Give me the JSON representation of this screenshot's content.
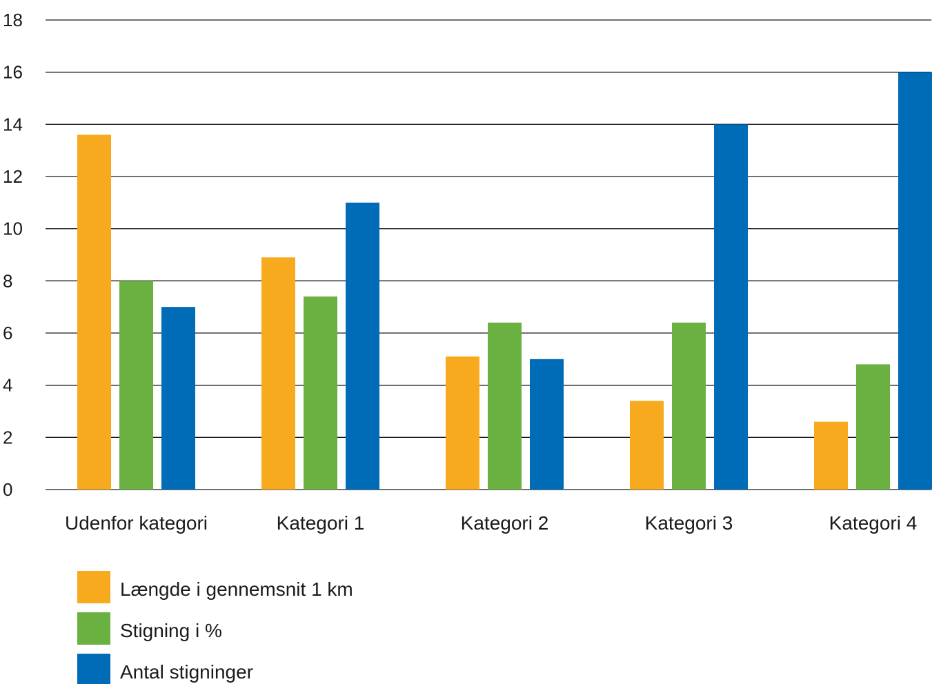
{
  "chart_data": {
    "type": "bar",
    "title": "",
    "xlabel": "",
    "ylabel": "",
    "ylim": [
      0,
      18
    ],
    "yticks": [
      0,
      2,
      4,
      6,
      8,
      10,
      12,
      14,
      16,
      18
    ],
    "grid": true,
    "legend_position": "bottom-left",
    "categories": [
      "Udenfor kategori",
      "Kategori 1",
      "Kategori 2",
      "Kategori 3",
      "Kategori 4"
    ],
    "series": [
      {
        "name": "Længde i gennemsnit 1 km",
        "color": "#f8aa1e",
        "values": [
          13.6,
          8.9,
          5.1,
          3.4,
          2.6
        ]
      },
      {
        "name": "Stigning i %",
        "color": "#6ab142",
        "values": [
          8.0,
          7.4,
          6.4,
          6.4,
          4.8
        ]
      },
      {
        "name": "Antal stigninger",
        "color": "#006bb6",
        "values": [
          7,
          11,
          5,
          14,
          16
        ]
      }
    ]
  }
}
